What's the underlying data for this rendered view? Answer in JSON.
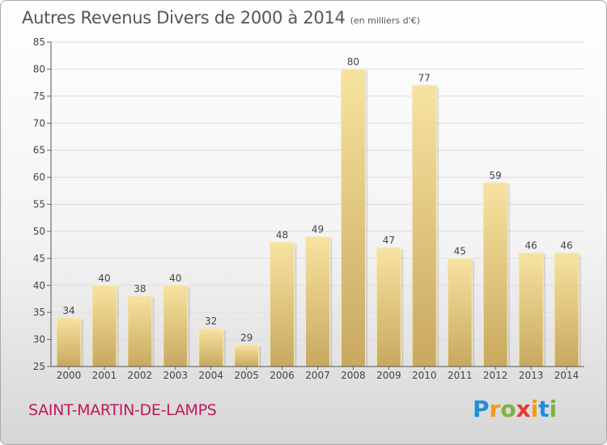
{
  "title": "Autres Revenus Divers de 2000 à 2014",
  "unit": "(en milliers d'€)",
  "commune": "SAINT-MARTIN-DE-LAMPS",
  "logo": {
    "text": "Proxiti",
    "letters": [
      {
        "ch": "P",
        "color": "#1f8fd6"
      },
      {
        "ch": "r",
        "color": "#f39c12"
      },
      {
        "ch": "o",
        "color": "#7cb342"
      },
      {
        "ch": "x",
        "color": "#e53935"
      },
      {
        "ch": "i",
        "color": "#f39c12"
      },
      {
        "ch": "t",
        "color": "#1f8fd6"
      },
      {
        "ch": "i",
        "color": "#7cb342"
      }
    ]
  },
  "colors": {
    "bar_top": "#f7e3a0",
    "bar_bottom": "#c9a85f",
    "grid": "#dddddd",
    "axis_text": "#444444"
  },
  "chart_data": {
    "type": "bar",
    "categories": [
      "2000",
      "2001",
      "2002",
      "2003",
      "2004",
      "2005",
      "2006",
      "2007",
      "2008",
      "2009",
      "2010",
      "2011",
      "2012",
      "2013",
      "2014"
    ],
    "values": [
      34,
      40,
      38,
      40,
      32,
      29,
      48,
      49,
      80,
      47,
      77,
      45,
      59,
      46,
      46
    ],
    "ylim": [
      25,
      85
    ],
    "yticks": [
      25,
      30,
      35,
      40,
      45,
      50,
      55,
      60,
      65,
      70,
      75,
      80,
      85
    ],
    "grid": true,
    "xlabel": "",
    "ylabel": ""
  }
}
